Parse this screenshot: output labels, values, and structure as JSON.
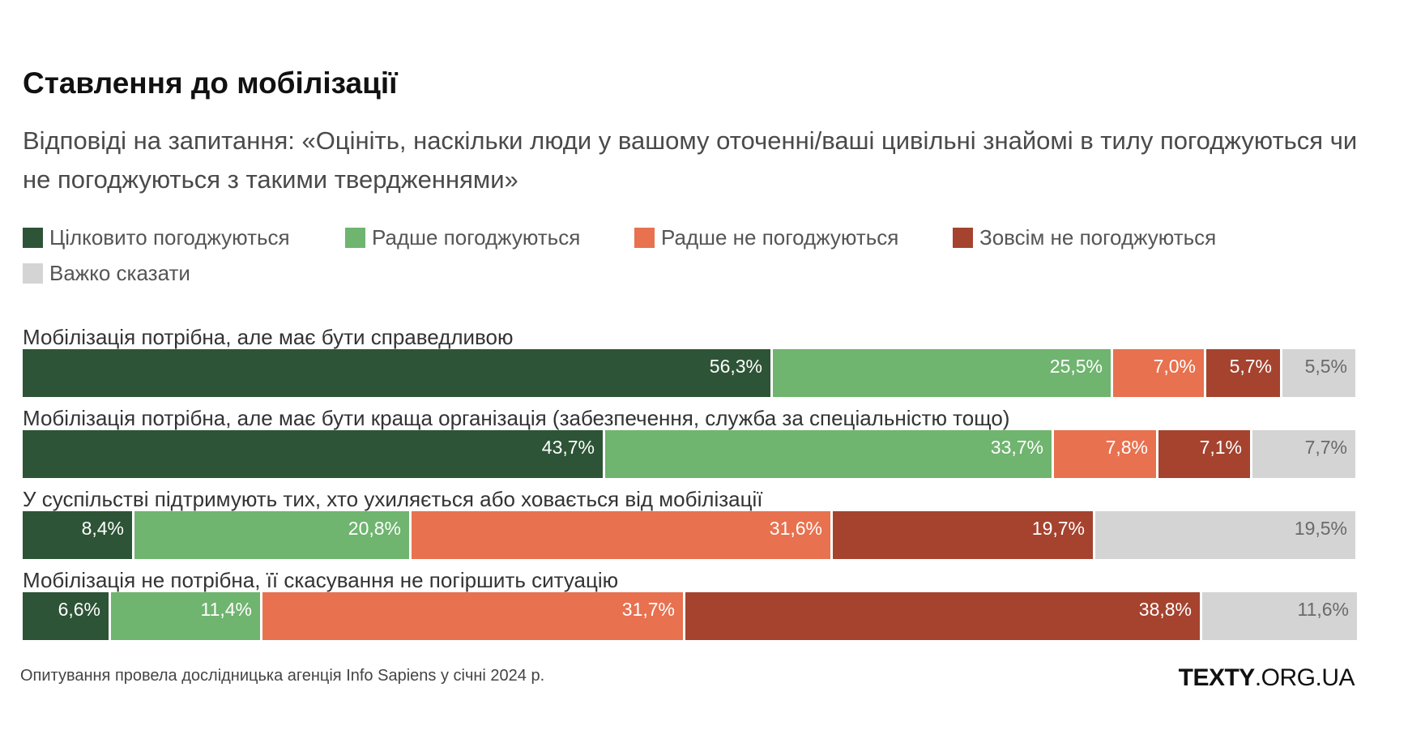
{
  "title": "Ставлення до мобілізації",
  "subtitle": "Відповіді на запитання: «Оцініть, наскільки люди у вашому оточенні/ваші цивільні знайомі в тилу погоджуються чи не погоджуються з такими твердженнями»",
  "footer": {
    "note": "Опитування провела дослідницька агенція Info Sapiens у січні 2024 р.",
    "brand_bold": "TEXTY",
    "brand_rest": ".ORG.UA"
  },
  "chart_data": {
    "type": "bar",
    "orientation": "horizontal",
    "stacked": true,
    "title": "Ставлення до мобілізації",
    "subtitle": "Відповіді на запитання: «Оцініть, наскільки люди у вашому оточенні/ваші цивільні знайомі в тилу погоджуються чи не погоджуються з такими твердженнями»",
    "legend_position": "top",
    "grid": false,
    "xlim": [
      0,
      100
    ],
    "categories": [
      "Мобілізація потрібна, але має бути справедливою",
      "Мобілізація потрібна, але має бути краща організація (забезпечення, служба за спеціальністю тощо)",
      "У суспільстві підтримують тих, хто ухиляється або ховається від мобілізації",
      "Мобілізація не потрібна, її скасування не погіршить ситуацію"
    ],
    "series": [
      {
        "name": "Цілковито погоджуються",
        "color": "#2d5436",
        "values": [
          56.3,
          43.7,
          8.4,
          6.6
        ],
        "labels": [
          "56,3%",
          "43,7%",
          "8,4%",
          "6,6%"
        ]
      },
      {
        "name": "Радше погоджуються",
        "color": "#6fb46f",
        "values": [
          25.5,
          33.7,
          20.8,
          11.4
        ],
        "labels": [
          "25,5%",
          "33,7%",
          "20,8%",
          "11,4%"
        ]
      },
      {
        "name": "Радше не погоджуються",
        "color": "#e8714f",
        "values": [
          7.0,
          7.8,
          31.6,
          31.7
        ],
        "labels": [
          "7,0%",
          "7,8%",
          "31,6%",
          "31,7%"
        ]
      },
      {
        "name": "Зовсім не погоджуються",
        "color": "#a5432f",
        "values": [
          5.7,
          7.1,
          19.7,
          38.8
        ],
        "labels": [
          "5,7%",
          "7,1%",
          "19,7%",
          "38,8%"
        ]
      },
      {
        "name": "Важко сказати",
        "color": "#d4d4d4",
        "values": [
          5.5,
          7.7,
          19.5,
          11.6
        ],
        "labels": [
          "5,5%",
          "7,7%",
          "19,5%",
          "11,6%"
        ]
      }
    ]
  }
}
